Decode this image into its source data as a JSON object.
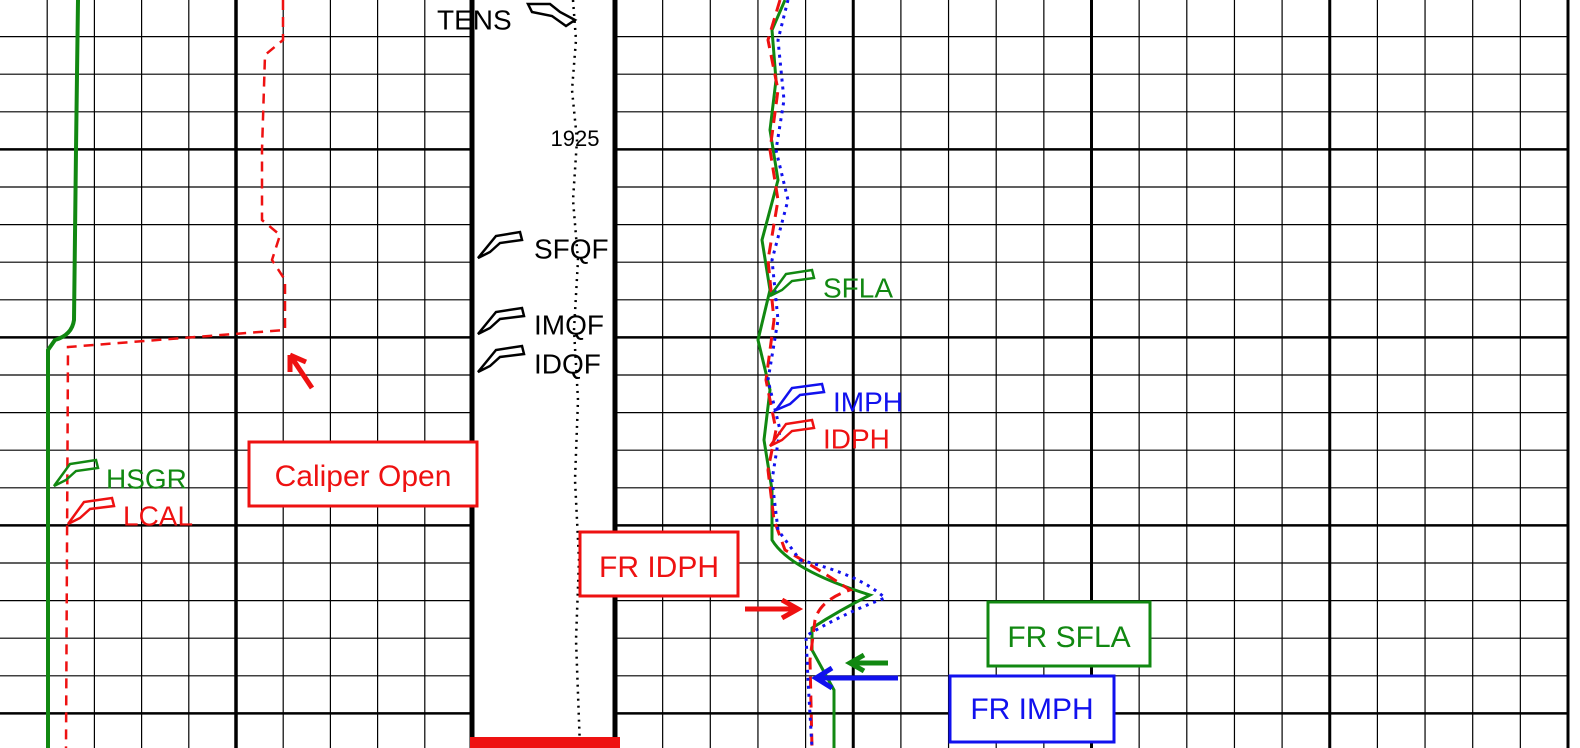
{
  "depth_track": {
    "tens_label": "TENS",
    "depth": 1925,
    "flags": [
      "SFQF",
      "IMQF",
      "IDQF"
    ]
  },
  "curve_labels": {
    "hsgr": "HSGR",
    "lcal": "LCAL",
    "sfla": "SFLA",
    "imph": "IMPH",
    "idph": "IDPH"
  },
  "boxes": {
    "caliper_open": "Caliper Open",
    "fr_idph": "FR IDPH",
    "fr_sfla": "FR SFLA",
    "fr_imph": "FR IMPH"
  }
}
